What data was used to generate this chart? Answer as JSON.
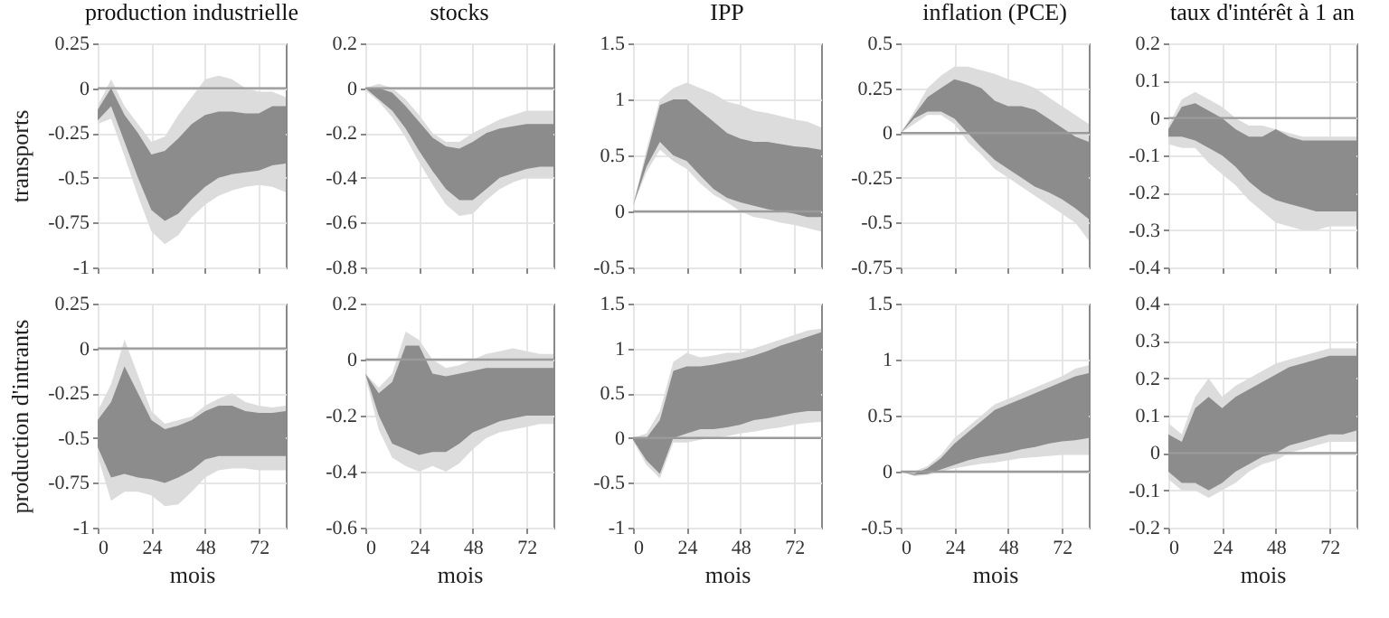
{
  "chart_data": [
    {
      "type": "line",
      "title": "production industrielle",
      "ylabel": "transports",
      "x": [
        0,
        6,
        12,
        18,
        24,
        30,
        36,
        42,
        48,
        54,
        60,
        66,
        72,
        78,
        84
      ],
      "xlim": [
        0,
        84
      ],
      "xticks": [
        0,
        24,
        48,
        72
      ],
      "ylim": [
        -1,
        0.25
      ],
      "yticks": [
        -1,
        -0.75,
        -0.5,
        -0.25,
        0,
        0.25
      ],
      "grid": true,
      "tick_labels": "y",
      "ref_lines": [
        {
          "axis": "y",
          "value": 0
        }
      ],
      "series": [
        {
          "color": "#dcdcdc",
          "values": [
            null,
            null,
            null,
            null,
            null,
            null,
            null,
            null,
            null,
            null,
            null,
            null,
            null,
            null,
            null
          ],
          "upper": [
            -0.1,
            0.05,
            -0.1,
            -0.2,
            -0.3,
            -0.27,
            -0.15,
            -0.05,
            0.05,
            0.07,
            0.05,
            0,
            -0.02,
            -0.02,
            -0.05
          ],
          "lower": [
            -0.2,
            -0.17,
            -0.38,
            -0.6,
            -0.8,
            -0.87,
            -0.82,
            -0.72,
            -0.65,
            -0.6,
            -0.57,
            -0.55,
            -0.54,
            -0.55,
            -0.58
          ]
        },
        {
          "color": "#8c8c8c",
          "values": [
            null,
            null,
            null,
            null,
            null,
            null,
            null,
            null,
            null,
            null,
            null,
            null,
            null,
            null,
            null
          ],
          "upper": [
            -0.12,
            0,
            -0.15,
            -0.25,
            -0.37,
            -0.35,
            -0.28,
            -0.2,
            -0.15,
            -0.13,
            -0.13,
            -0.14,
            -0.14,
            -0.1,
            -0.1
          ],
          "lower": [
            -0.18,
            -0.1,
            -0.3,
            -0.5,
            -0.68,
            -0.74,
            -0.7,
            -0.62,
            -0.55,
            -0.5,
            -0.48,
            -0.47,
            -0.46,
            -0.43,
            -0.42
          ]
        }
      ]
    },
    {
      "type": "line",
      "title": "stocks",
      "x": [
        0,
        6,
        12,
        18,
        24,
        30,
        36,
        42,
        48,
        54,
        60,
        66,
        72,
        78,
        84
      ],
      "xlim": [
        0,
        84
      ],
      "xticks": [
        0,
        24,
        48,
        72
      ],
      "ylim": [
        -0.8,
        0.2
      ],
      "yticks": [
        -0.8,
        -0.6,
        -0.4,
        -0.2,
        0,
        0.2
      ],
      "grid": true,
      "tick_labels": "y",
      "ref_lines": [
        {
          "axis": "y",
          "value": 0
        }
      ],
      "series": [
        {
          "color": "#dcdcdc",
          "values": [
            null,
            null,
            null,
            null,
            null,
            null,
            null,
            null,
            null,
            null,
            null,
            null,
            null,
            null,
            null
          ],
          "upper": [
            0,
            0.02,
            0,
            -0.05,
            -0.12,
            -0.2,
            -0.24,
            -0.24,
            -0.2,
            -0.17,
            -0.14,
            -0.12,
            -0.1,
            -0.1,
            -0.1
          ],
          "lower": [
            -0.01,
            -0.06,
            -0.13,
            -0.22,
            -0.33,
            -0.43,
            -0.52,
            -0.57,
            -0.56,
            -0.5,
            -0.45,
            -0.42,
            -0.4,
            -0.4,
            -0.4
          ]
        },
        {
          "color": "#8c8c8c",
          "values": [
            null,
            null,
            null,
            null,
            null,
            null,
            null,
            null,
            null,
            null,
            null,
            null,
            null,
            null,
            null
          ],
          "upper": [
            0,
            0,
            -0.02,
            -0.08,
            -0.15,
            -0.22,
            -0.26,
            -0.27,
            -0.24,
            -0.2,
            -0.18,
            -0.17,
            -0.16,
            -0.16,
            -0.16
          ],
          "lower": [
            0,
            -0.05,
            -0.1,
            -0.18,
            -0.28,
            -0.37,
            -0.45,
            -0.5,
            -0.5,
            -0.45,
            -0.4,
            -0.38,
            -0.36,
            -0.35,
            -0.35
          ]
        }
      ]
    },
    {
      "type": "line",
      "title": "IPP",
      "x": [
        0,
        6,
        12,
        18,
        24,
        30,
        36,
        42,
        48,
        54,
        60,
        66,
        72,
        78,
        84
      ],
      "xlim": [
        0,
        84
      ],
      "xticks": [
        0,
        24,
        48,
        72
      ],
      "ylim": [
        -0.5,
        1.5
      ],
      "yticks": [
        -0.5,
        0,
        0.5,
        1,
        1.5
      ],
      "grid": true,
      "tick_labels": "y",
      "ref_lines": [
        {
          "axis": "y",
          "value": 0
        }
      ],
      "series": [
        {
          "color": "#dcdcdc",
          "values": [
            null,
            null,
            null,
            null,
            null,
            null,
            null,
            null,
            null,
            null,
            null,
            null,
            null,
            null,
            null
          ],
          "upper": [
            0.05,
            0.55,
            1,
            1.1,
            1.15,
            1.1,
            1.05,
            0.98,
            0.95,
            0.9,
            0.88,
            0.85,
            0.82,
            0.8,
            0.75
          ],
          "lower": [
            0.05,
            0.35,
            0.55,
            0.45,
            0.38,
            0.25,
            0.15,
            0.08,
            0,
            -0.05,
            -0.07,
            -0.1,
            -0.12,
            -0.15,
            -0.18
          ]
        },
        {
          "color": "#8c8c8c",
          "values": [
            null,
            null,
            null,
            null,
            null,
            null,
            null,
            null,
            null,
            null,
            null,
            null,
            null,
            null,
            null
          ],
          "upper": [
            0.05,
            0.5,
            0.95,
            1,
            1,
            0.9,
            0.8,
            0.7,
            0.65,
            0.62,
            0.62,
            0.6,
            0.58,
            0.57,
            0.55
          ],
          "lower": [
            0.05,
            0.4,
            0.62,
            0.5,
            0.45,
            0.32,
            0.2,
            0.12,
            0.08,
            0.05,
            0.02,
            0,
            -0.02,
            -0.05,
            -0.05
          ]
        }
      ]
    },
    {
      "type": "line",
      "title": "inflation (PCE)",
      "x": [
        0,
        6,
        12,
        18,
        24,
        30,
        36,
        42,
        48,
        54,
        60,
        66,
        72,
        78,
        84
      ],
      "xlim": [
        0,
        84
      ],
      "xticks": [
        0,
        24,
        48,
        72
      ],
      "ylim": [
        -0.75,
        0.5
      ],
      "yticks": [
        -0.75,
        -0.5,
        -0.25,
        0,
        0.25,
        0.5
      ],
      "grid": true,
      "tick_labels": "y",
      "ref_lines": [
        {
          "axis": "y",
          "value": 0
        }
      ],
      "series": [
        {
          "color": "#dcdcdc",
          "values": [
            null,
            null,
            null,
            null,
            null,
            null,
            null,
            null,
            null,
            null,
            null,
            null,
            null,
            null,
            null
          ],
          "upper": [
            0,
            0.12,
            0.25,
            0.32,
            0.37,
            0.37,
            0.35,
            0.33,
            0.3,
            0.28,
            0.25,
            0.2,
            0.15,
            0.1,
            0.05
          ],
          "lower": [
            0,
            0.05,
            0.1,
            0.1,
            0.05,
            -0.05,
            -0.12,
            -0.2,
            -0.25,
            -0.3,
            -0.35,
            -0.4,
            -0.45,
            -0.5,
            -0.6
          ]
        },
        {
          "color": "#8c8c8c",
          "values": [
            null,
            null,
            null,
            null,
            null,
            null,
            null,
            null,
            null,
            null,
            null,
            null,
            null,
            null,
            null
          ],
          "upper": [
            0,
            0.1,
            0.2,
            0.25,
            0.3,
            0.28,
            0.25,
            0.18,
            0.15,
            0.15,
            0.13,
            0.08,
            0.03,
            -0.02,
            -0.05
          ],
          "lower": [
            0,
            0.08,
            0.12,
            0.12,
            0.08,
            0,
            -0.08,
            -0.15,
            -0.2,
            -0.25,
            -0.3,
            -0.33,
            -0.37,
            -0.42,
            -0.48
          ]
        }
      ]
    },
    {
      "type": "line",
      "title": "taux d'intérêt à 1 an",
      "x": [
        0,
        6,
        12,
        18,
        24,
        30,
        36,
        42,
        48,
        54,
        60,
        66,
        72,
        78,
        84
      ],
      "xlim": [
        0,
        84
      ],
      "xticks": [
        0,
        24,
        48,
        72
      ],
      "ylim": [
        -0.4,
        0.2
      ],
      "yticks": [
        -0.4,
        -0.3,
        -0.2,
        -0.1,
        0,
        0.1,
        0.2
      ],
      "grid": true,
      "tick_labels": "y",
      "ref_lines": [
        {
          "axis": "y",
          "value": 0
        }
      ],
      "series": [
        {
          "color": "#dcdcdc",
          "values": [
            null,
            null,
            null,
            null,
            null,
            null,
            null,
            null,
            null,
            null,
            null,
            null,
            null,
            null,
            null
          ],
          "upper": [
            -0.02,
            0.05,
            0.07,
            0.05,
            0.03,
            0,
            -0.02,
            -0.02,
            -0.03,
            -0.04,
            -0.05,
            -0.05,
            -0.05,
            -0.05,
            -0.05
          ],
          "lower": [
            -0.07,
            -0.08,
            -0.08,
            -0.12,
            -0.15,
            -0.18,
            -0.22,
            -0.25,
            -0.28,
            -0.29,
            -0.3,
            -0.3,
            -0.29,
            -0.29,
            -0.29
          ]
        },
        {
          "color": "#8c8c8c",
          "values": [
            null,
            null,
            null,
            null,
            null,
            null,
            null,
            null,
            null,
            null,
            null,
            null,
            null,
            null,
            null
          ],
          "upper": [
            -0.03,
            0.03,
            0.04,
            0.02,
            0,
            -0.03,
            -0.05,
            -0.05,
            -0.03,
            -0.05,
            -0.06,
            -0.06,
            -0.06,
            -0.06,
            -0.06
          ],
          "lower": [
            -0.05,
            -0.05,
            -0.06,
            -0.08,
            -0.1,
            -0.13,
            -0.17,
            -0.2,
            -0.22,
            -0.23,
            -0.24,
            -0.25,
            -0.25,
            -0.25,
            -0.25
          ]
        }
      ]
    },
    {
      "type": "line",
      "ylabel": "production d'intrants",
      "xlabel": "mois",
      "x": [
        0,
        6,
        12,
        18,
        24,
        30,
        36,
        42,
        48,
        54,
        60,
        66,
        72,
        78,
        84
      ],
      "xlim": [
        0,
        84
      ],
      "xticks": [
        0,
        24,
        48,
        72
      ],
      "ylim": [
        -1,
        0.25
      ],
      "yticks": [
        -1,
        -0.75,
        -0.5,
        -0.25,
        0,
        0.25
      ],
      "grid": true,
      "ref_lines": [
        {
          "axis": "y",
          "value": 0
        }
      ],
      "series": [
        {
          "color": "#dcdcdc",
          "values": [
            null,
            null,
            null,
            null,
            null,
            null,
            null,
            null,
            null,
            null,
            null,
            null,
            null,
            null,
            null
          ],
          "upper": [
            -0.35,
            -0.2,
            0.05,
            -0.15,
            -0.35,
            -0.42,
            -0.4,
            -0.38,
            -0.32,
            -0.28,
            -0.25,
            -0.3,
            -0.32,
            -0.33,
            -0.32
          ],
          "lower": [
            -0.6,
            -0.85,
            -0.8,
            -0.8,
            -0.82,
            -0.88,
            -0.87,
            -0.8,
            -0.72,
            -0.68,
            -0.67,
            -0.67,
            -0.68,
            -0.68,
            -0.68
          ]
        },
        {
          "color": "#8c8c8c",
          "values": [
            null,
            null,
            null,
            null,
            null,
            null,
            null,
            null,
            null,
            null,
            null,
            null,
            null,
            null,
            null
          ],
          "upper": [
            -0.4,
            -0.3,
            -0.1,
            -0.25,
            -0.4,
            -0.45,
            -0.43,
            -0.4,
            -0.35,
            -0.32,
            -0.32,
            -0.35,
            -0.36,
            -0.36,
            -0.35
          ],
          "lower": [
            -0.55,
            -0.72,
            -0.7,
            -0.72,
            -0.73,
            -0.75,
            -0.72,
            -0.68,
            -0.62,
            -0.6,
            -0.6,
            -0.6,
            -0.6,
            -0.6,
            -0.6
          ]
        }
      ]
    },
    {
      "type": "line",
      "xlabel": "mois",
      "x": [
        0,
        6,
        12,
        18,
        24,
        30,
        36,
        42,
        48,
        54,
        60,
        66,
        72,
        78,
        84
      ],
      "xlim": [
        0,
        84
      ],
      "xticks": [
        0,
        24,
        48,
        72
      ],
      "ylim": [
        -0.6,
        0.2
      ],
      "yticks": [
        -0.6,
        -0.4,
        -0.2,
        0,
        0.2
      ],
      "grid": true,
      "ref_lines": [
        {
          "axis": "y",
          "value": 0
        }
      ],
      "series": [
        {
          "color": "#dcdcdc",
          "values": [
            null,
            null,
            null,
            null,
            null,
            null,
            null,
            null,
            null,
            null,
            null,
            null,
            null,
            null,
            null
          ],
          "upper": [
            -0.05,
            -0.1,
            -0.05,
            0.1,
            0.07,
            0,
            -0.03,
            -0.02,
            0,
            0.02,
            0.03,
            0.04,
            0.03,
            0.02,
            0.02
          ],
          "lower": [
            -0.06,
            -0.25,
            -0.35,
            -0.38,
            -0.4,
            -0.38,
            -0.4,
            -0.37,
            -0.32,
            -0.28,
            -0.26,
            -0.25,
            -0.24,
            -0.23,
            -0.23
          ]
        },
        {
          "color": "#8c8c8c",
          "values": [
            null,
            null,
            null,
            null,
            null,
            null,
            null,
            null,
            null,
            null,
            null,
            null,
            null,
            null,
            null
          ],
          "upper": [
            -0.05,
            -0.12,
            -0.08,
            0.05,
            0.05,
            -0.05,
            -0.06,
            -0.05,
            -0.04,
            -0.03,
            -0.03,
            -0.03,
            -0.03,
            -0.03,
            -0.03
          ],
          "lower": [
            -0.05,
            -0.2,
            -0.3,
            -0.32,
            -0.34,
            -0.33,
            -0.33,
            -0.3,
            -0.26,
            -0.24,
            -0.22,
            -0.21,
            -0.2,
            -0.2,
            -0.2
          ]
        }
      ]
    },
    {
      "type": "line",
      "xlabel": "mois",
      "x": [
        0,
        6,
        12,
        18,
        24,
        30,
        36,
        42,
        48,
        54,
        60,
        66,
        72,
        78,
        84
      ],
      "xlim": [
        0,
        84
      ],
      "xticks": [
        0,
        24,
        48,
        72
      ],
      "ylim": [
        -1,
        1.5
      ],
      "yticks": [
        -1,
        -0.5,
        0,
        0.5,
        1,
        1.5
      ],
      "grid": true,
      "ref_lines": [
        {
          "axis": "y",
          "value": 0
        }
      ],
      "series": [
        {
          "color": "#dcdcdc",
          "values": [
            null,
            null,
            null,
            null,
            null,
            null,
            null,
            null,
            null,
            null,
            null,
            null,
            null,
            null,
            null
          ],
          "upper": [
            0,
            0.05,
            0.3,
            0.85,
            0.95,
            0.9,
            0.92,
            0.95,
            0.95,
            1,
            1.05,
            1.1,
            1.15,
            1.2,
            1.22
          ],
          "lower": [
            -0.03,
            -0.3,
            -0.45,
            -0.05,
            -0.05,
            -0.02,
            0,
            0.02,
            0.05,
            0.07,
            0.1,
            0.12,
            0.15,
            0.17,
            0.18
          ]
        },
        {
          "color": "#8c8c8c",
          "values": [
            null,
            null,
            null,
            null,
            null,
            null,
            null,
            null,
            null,
            null,
            null,
            null,
            null,
            null,
            null
          ],
          "upper": [
            0,
            0,
            0.2,
            0.75,
            0.8,
            0.8,
            0.82,
            0.85,
            0.88,
            0.92,
            0.97,
            1.03,
            1.08,
            1.13,
            1.18
          ],
          "lower": [
            -0.02,
            -0.25,
            -0.4,
            0,
            0.05,
            0.1,
            0.1,
            0.12,
            0.15,
            0.2,
            0.22,
            0.25,
            0.28,
            0.3,
            0.3
          ]
        }
      ]
    },
    {
      "type": "line",
      "xlabel": "mois",
      "x": [
        0,
        6,
        12,
        18,
        24,
        30,
        36,
        42,
        48,
        54,
        60,
        66,
        72,
        78,
        84
      ],
      "xlim": [
        0,
        84
      ],
      "xticks": [
        0,
        24,
        48,
        72
      ],
      "ylim": [
        -0.5,
        1.5
      ],
      "yticks": [
        -0.5,
        0,
        0.5,
        1,
        1.5
      ],
      "grid": true,
      "ref_lines": [
        {
          "axis": "y",
          "value": 0
        }
      ],
      "series": [
        {
          "color": "#dcdcdc",
          "values": [
            null,
            null,
            null,
            null,
            null,
            null,
            null,
            null,
            null,
            null,
            null,
            null,
            null,
            null,
            null
          ],
          "upper": [
            0,
            0,
            0.05,
            0.15,
            0.3,
            0.4,
            0.5,
            0.6,
            0.65,
            0.7,
            0.75,
            0.8,
            0.85,
            0.92,
            0.95
          ],
          "lower": [
            0,
            -0.04,
            -0.03,
            0,
            0.03,
            0.05,
            0.07,
            0.08,
            0.1,
            0.12,
            0.13,
            0.14,
            0.15,
            0.15,
            0.15
          ]
        },
        {
          "color": "#8c8c8c",
          "values": [
            null,
            null,
            null,
            null,
            null,
            null,
            null,
            null,
            null,
            null,
            null,
            null,
            null,
            null,
            null
          ],
          "upper": [
            0,
            -0.02,
            0.03,
            0.12,
            0.25,
            0.35,
            0.45,
            0.55,
            0.6,
            0.65,
            0.7,
            0.75,
            0.8,
            0.85,
            0.88
          ],
          "lower": [
            0,
            -0.03,
            -0.02,
            0.02,
            0.06,
            0.1,
            0.13,
            0.15,
            0.17,
            0.2,
            0.22,
            0.25,
            0.27,
            0.28,
            0.3
          ]
        }
      ]
    },
    {
      "type": "line",
      "xlabel": "mois",
      "x": [
        0,
        6,
        12,
        18,
        24,
        30,
        36,
        42,
        48,
        54,
        60,
        66,
        72,
        78,
        84
      ],
      "xlim": [
        0,
        84
      ],
      "xticks": [
        0,
        24,
        48,
        72
      ],
      "ylim": [
        -0.2,
        0.4
      ],
      "yticks": [
        -0.2,
        -0.1,
        0,
        0.1,
        0.2,
        0.3,
        0.4
      ],
      "grid": true,
      "ref_lines": [
        {
          "axis": "y",
          "value": 0
        }
      ],
      "series": [
        {
          "color": "#dcdcdc",
          "values": [
            null,
            null,
            null,
            null,
            null,
            null,
            null,
            null,
            null,
            null,
            null,
            null,
            null,
            null,
            null
          ],
          "upper": [
            0.08,
            0.05,
            0.15,
            0.2,
            0.15,
            0.18,
            0.2,
            0.22,
            0.24,
            0.25,
            0.26,
            0.27,
            0.28,
            0.28,
            0.28
          ],
          "lower": [
            -0.07,
            -0.1,
            -0.1,
            -0.12,
            -0.1,
            -0.08,
            -0.05,
            -0.03,
            -0.02,
            0,
            0.01,
            0.02,
            0.03,
            0.03,
            0.03
          ]
        },
        {
          "color": "#8c8c8c",
          "values": [
            null,
            null,
            null,
            null,
            null,
            null,
            null,
            null,
            null,
            null,
            null,
            null,
            null,
            null,
            null
          ],
          "upper": [
            0.05,
            0.03,
            0.12,
            0.15,
            0.12,
            0.15,
            0.17,
            0.19,
            0.21,
            0.23,
            0.24,
            0.25,
            0.26,
            0.26,
            0.26
          ],
          "lower": [
            -0.05,
            -0.08,
            -0.08,
            -0.1,
            -0.08,
            -0.05,
            -0.03,
            -0.01,
            0,
            0.02,
            0.03,
            0.04,
            0.05,
            0.05,
            0.06
          ]
        }
      ]
    }
  ]
}
